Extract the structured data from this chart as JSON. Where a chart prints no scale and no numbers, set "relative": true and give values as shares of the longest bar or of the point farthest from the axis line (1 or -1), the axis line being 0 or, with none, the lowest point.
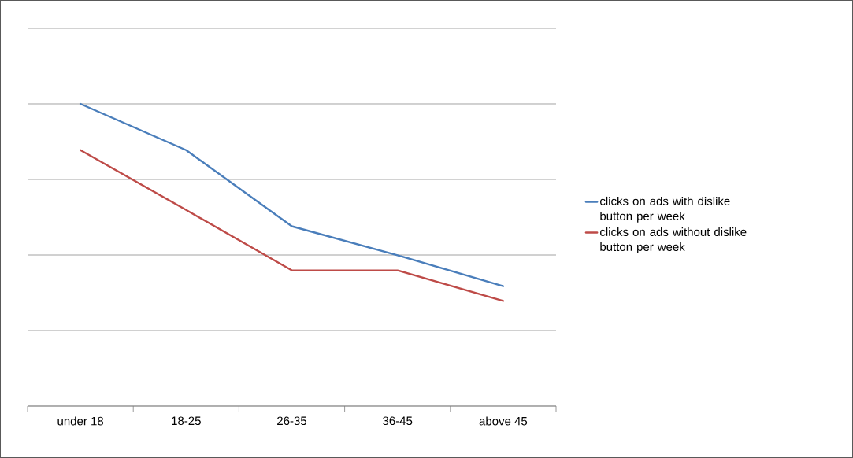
{
  "chart_data": {
    "type": "line",
    "relative": true,
    "categories": [
      "under 18",
      "18-25",
      "26-35",
      "36-45",
      "above 45"
    ],
    "series": [
      {
        "name": "clicks on ads with dislike button per week",
        "color": "#4a7ebb",
        "values": [
          1,
          0.847,
          0.595,
          0.499,
          0.397
        ]
      },
      {
        "name": "clicks on ads without dislike button per week",
        "color": "#be4b48",
        "values": [
          0.847,
          0.649,
          0.449,
          0.449,
          0.348
        ]
      }
    ],
    "grid": "y",
    "legend": "right",
    "marker": "none",
    "line_style": "solid"
  }
}
